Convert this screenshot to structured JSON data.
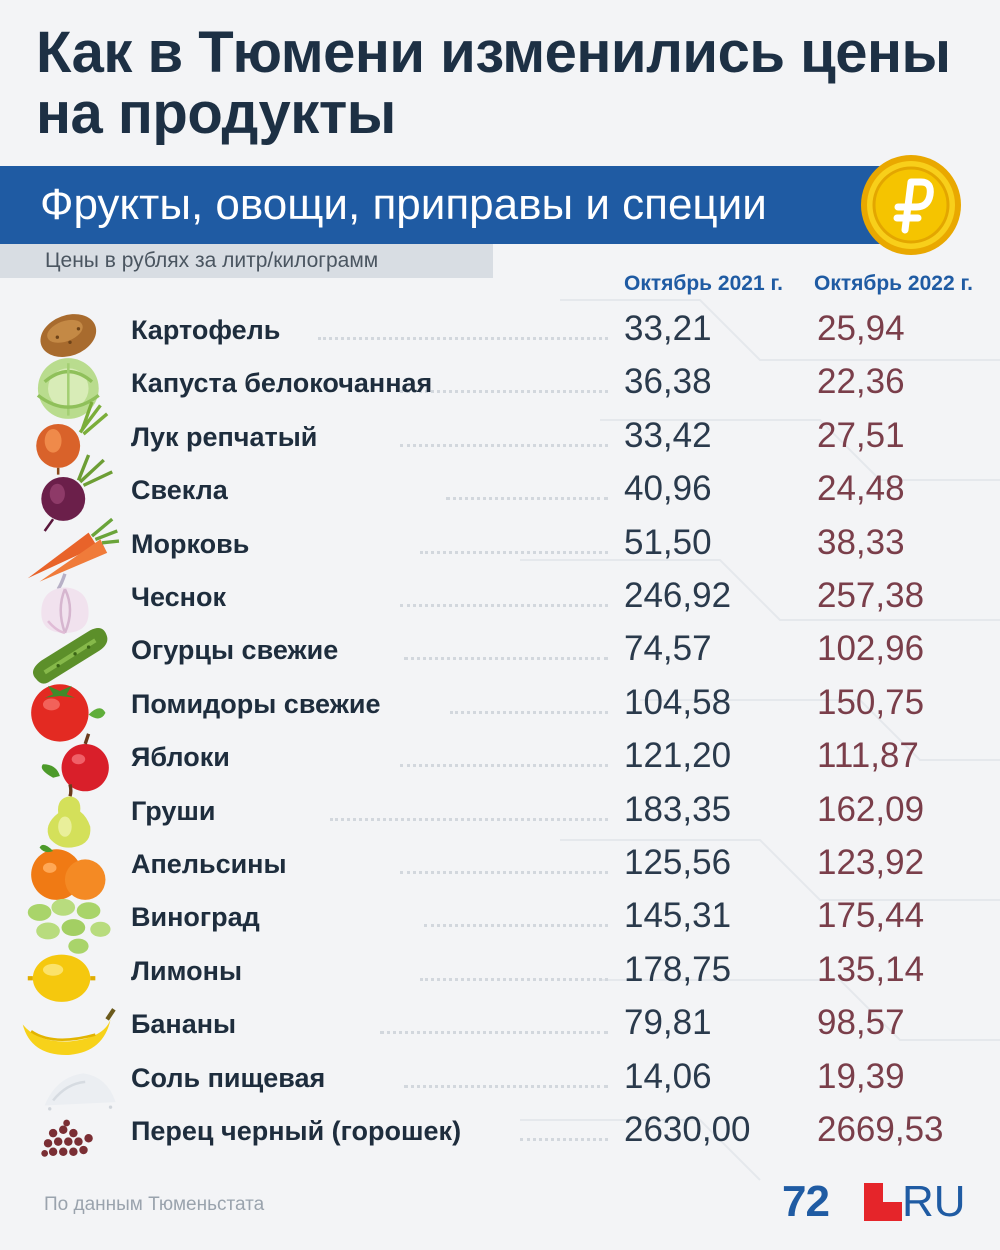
{
  "header": {
    "title": "Как в Тюмени изменились цены на продукты",
    "category": "Фрукты, овощи, приправы и специи",
    "units_note": "Цены в рублях за литр/килограмм"
  },
  "columns": {
    "col1": "Октябрь 2021 г.",
    "col2": "Октябрь 2022 г."
  },
  "chart_data": {
    "type": "table",
    "title": "Как в Тюмени изменились цены на продукты",
    "subtitle": "Фрукты, овощи, приправы и специи",
    "unit": "Цены в рублях за литр/килограмм",
    "columns": [
      "Октябрь 2021 г.",
      "Октябрь 2022 г."
    ],
    "rows": [
      {
        "icon": "potato-icon",
        "name": "Картофель",
        "v1": "33,21",
        "v2": "25,94"
      },
      {
        "icon": "cabbage-icon",
        "name": "Капуста белокочанная",
        "v1": "36,38",
        "v2": "22,36"
      },
      {
        "icon": "onion-icon",
        "name": "Лук репчатый",
        "v1": "33,42",
        "v2": "27,51"
      },
      {
        "icon": "beet-icon",
        "name": "Свекла",
        "v1": "40,96",
        "v2": "24,48"
      },
      {
        "icon": "carrot-icon",
        "name": "Морковь",
        "v1": "51,50",
        "v2": "38,33"
      },
      {
        "icon": "garlic-icon",
        "name": "Чеснок",
        "v1": "246,92",
        "v2": "257,38"
      },
      {
        "icon": "cucumber-icon",
        "name": "Огурцы свежие",
        "v1": "74,57",
        "v2": "102,96"
      },
      {
        "icon": "tomato-icon",
        "name": "Помидоры свежие",
        "v1": "104,58",
        "v2": "150,75"
      },
      {
        "icon": "apple-icon",
        "name": "Яблоки",
        "v1": "121,20",
        "v2": "111,87"
      },
      {
        "icon": "pear-icon",
        "name": "Груши",
        "v1": "183,35",
        "v2": "162,09"
      },
      {
        "icon": "orange-icon",
        "name": "Апельсины",
        "v1": "125,56",
        "v2": "123,92"
      },
      {
        "icon": "grape-icon",
        "name": "Виноград",
        "v1": "145,31",
        "v2": "175,44"
      },
      {
        "icon": "lemon-icon",
        "name": "Лимоны",
        "v1": "178,75",
        "v2": "135,14"
      },
      {
        "icon": "banana-icon",
        "name": "Бананы",
        "v1": "79,81",
        "v2": "98,57"
      },
      {
        "icon": "salt-icon",
        "name": "Соль пищевая",
        "v1": "14,06",
        "v2": "19,39"
      },
      {
        "icon": "peppercorn-icon",
        "name": "Перец черный (горошек)",
        "v1": "2630,00",
        "v2": "2669,53"
      }
    ]
  },
  "footer": {
    "source": "По данным Тюменьстата",
    "logo_number": "72",
    "logo_suffix": "RU"
  },
  "colors": {
    "band": "#1f5ba3",
    "title": "#1d3044",
    "value_2021": "#2a3a4c",
    "value_2022": "#7a3e4a",
    "coin": "#f5c400",
    "logo_red": "#e5252a"
  },
  "icons": {
    "coin": "ruble-coin-icon",
    "logo": "72ru-logo"
  }
}
